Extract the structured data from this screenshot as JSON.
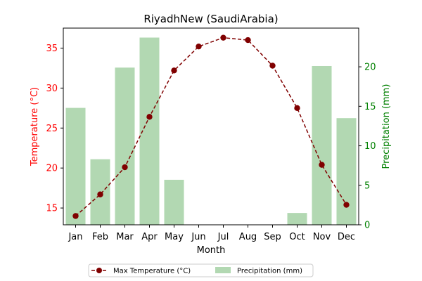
{
  "chart_data": {
    "type": "bar+line",
    "title": "RiyadhNew (SaudiArabia)",
    "xlabel": "Month",
    "ylabel_left": "Temperature (°C)",
    "ylabel_right": "Precipitation (mm)",
    "categories": [
      "Jan",
      "Feb",
      "Mar",
      "Apr",
      "May",
      "Jun",
      "Jul",
      "Aug",
      "Sep",
      "Oct",
      "Nov",
      "Dec"
    ],
    "series": [
      {
        "name": "Max Temperature (°C)",
        "type": "line",
        "axis": "left",
        "values": [
          14.0,
          16.7,
          20.1,
          26.4,
          32.2,
          35.2,
          36.3,
          36.0,
          32.8,
          27.5,
          20.4,
          15.4
        ],
        "color": "#800000",
        "line_style": "dashed",
        "marker": "circle"
      },
      {
        "name": "Precipitation (mm)",
        "type": "bar",
        "axis": "right",
        "values": [
          14.8,
          8.3,
          19.9,
          23.7,
          5.7,
          0,
          0,
          0,
          0,
          1.5,
          20.1,
          13.5
        ],
        "color": "#b2d8b2"
      }
    ],
    "ylim_left": [
      12.9,
      37.5
    ],
    "ylim_right": [
      0,
      24.9
    ],
    "yticks_left": [
      15,
      20,
      25,
      30,
      35
    ],
    "yticks_right": [
      0,
      5,
      10,
      15,
      20
    ],
    "left_axis_color": "#ff0000",
    "right_axis_color": "#008000",
    "grid": false,
    "legend_position": "bottom-center"
  }
}
